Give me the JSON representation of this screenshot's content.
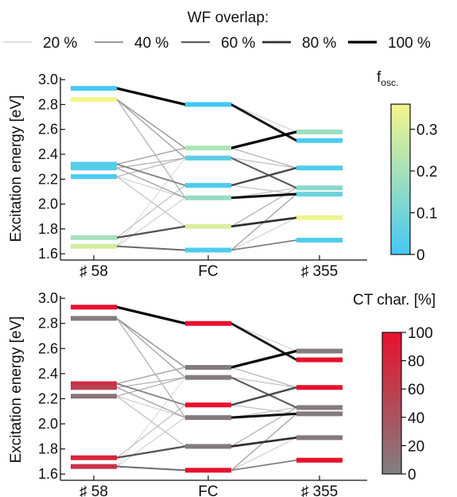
{
  "legend": {
    "title": "WF overlap:",
    "items": [
      {
        "label": "20 %",
        "weight": 0.2
      },
      {
        "label": "40 %",
        "weight": 0.4
      },
      {
        "label": "60 %",
        "weight": 0.6
      },
      {
        "label": "80 %",
        "weight": 0.8
      },
      {
        "label": "100 %",
        "weight": 1.0
      }
    ]
  },
  "chart_data": [
    {
      "type": "line",
      "ylabel": "Excitation energy [eV]",
      "ylim": [
        1.55,
        3.02
      ],
      "yticks": [
        "1.6",
        "1.8",
        "2.0",
        "2.2",
        "2.4",
        "2.6",
        "2.8",
        "3.0"
      ],
      "categories": [
        "♯ 58",
        "FC",
        "♯ 355"
      ],
      "colorbar": {
        "title": "f",
        "title_sub": "osc.",
        "range": [
          0,
          0.36
        ],
        "ticks": [
          "0",
          "0.1",
          "0.2",
          "0.3"
        ],
        "tick_values": [
          0,
          0.1,
          0.2,
          0.3
        ],
        "colors": [
          "#44c8f5",
          "#f5f58a"
        ]
      },
      "levels": [
        [
          {
            "energy": 2.93,
            "value": 0.0
          },
          {
            "energy": 2.84,
            "value": 0.36
          },
          {
            "energy": 2.32,
            "value": 0.03
          },
          {
            "energy": 2.29,
            "value": 0.04
          },
          {
            "energy": 2.22,
            "value": 0.02
          },
          {
            "energy": 1.73,
            "value": 0.2
          },
          {
            "energy": 1.66,
            "value": 0.29
          }
        ],
        [
          {
            "energy": 2.8,
            "value": 0.0
          },
          {
            "energy": 2.45,
            "value": 0.22
          },
          {
            "energy": 2.37,
            "value": 0.05
          },
          {
            "energy": 2.15,
            "value": 0.02
          },
          {
            "energy": 2.05,
            "value": 0.16
          },
          {
            "energy": 1.82,
            "value": 0.3
          },
          {
            "energy": 1.63,
            "value": 0.02
          }
        ],
        [
          {
            "energy": 2.58,
            "value": 0.18
          },
          {
            "energy": 2.51,
            "value": 0.02
          },
          {
            "energy": 2.29,
            "value": 0.02
          },
          {
            "energy": 2.13,
            "value": 0.14
          },
          {
            "energy": 2.08,
            "value": 0.08
          },
          {
            "energy": 1.89,
            "value": 0.35
          },
          {
            "energy": 1.71,
            "value": 0.03
          }
        ]
      ],
      "connections": [
        {
          "from": [
            0,
            2.93
          ],
          "to": [
            1,
            2.8
          ],
          "overlap": 1.0
        },
        {
          "from": [
            0,
            2.84
          ],
          "to": [
            1,
            2.45
          ],
          "overlap": 0.35
        },
        {
          "from": [
            0,
            2.84
          ],
          "to": [
            1,
            2.37
          ],
          "overlap": 0.3
        },
        {
          "from": [
            0,
            2.84
          ],
          "to": [
            1,
            2.05
          ],
          "overlap": 0.25
        },
        {
          "from": [
            0,
            2.32
          ],
          "to": [
            1,
            2.45
          ],
          "overlap": 0.3
        },
        {
          "from": [
            0,
            2.32
          ],
          "to": [
            1,
            2.15
          ],
          "overlap": 0.45
        },
        {
          "from": [
            0,
            2.29
          ],
          "to": [
            1,
            2.37
          ],
          "overlap": 0.25
        },
        {
          "from": [
            0,
            2.29
          ],
          "to": [
            1,
            2.05
          ],
          "overlap": 0.3
        },
        {
          "from": [
            0,
            2.22
          ],
          "to": [
            1,
            2.37
          ],
          "overlap": 0.25
        },
        {
          "from": [
            0,
            2.22
          ],
          "to": [
            1,
            1.82
          ],
          "overlap": 0.2
        },
        {
          "from": [
            0,
            2.22
          ],
          "to": [
            1,
            2.05
          ],
          "overlap": 0.15
        },
        {
          "from": [
            0,
            1.73
          ],
          "to": [
            1,
            1.82
          ],
          "overlap": 0.65
        },
        {
          "from": [
            0,
            1.73
          ],
          "to": [
            1,
            2.15
          ],
          "overlap": 0.2
        },
        {
          "from": [
            0,
            1.66
          ],
          "to": [
            1,
            1.63
          ],
          "overlap": 0.55
        },
        {
          "from": [
            0,
            1.66
          ],
          "to": [
            1,
            2.05
          ],
          "overlap": 0.15
        },
        {
          "from": [
            0,
            1.66
          ],
          "to": [
            1,
            2.37
          ],
          "overlap": 0.1
        },
        {
          "from": [
            1,
            2.8
          ],
          "to": [
            2,
            2.51
          ],
          "overlap": 0.9
        },
        {
          "from": [
            1,
            2.8
          ],
          "to": [
            2,
            2.58
          ],
          "overlap": 0.15
        },
        {
          "from": [
            1,
            2.45
          ],
          "to": [
            2,
            2.58
          ],
          "overlap": 1.0
        },
        {
          "from": [
            1,
            2.45
          ],
          "to": [
            2,
            2.29
          ],
          "overlap": 0.25
        },
        {
          "from": [
            1,
            2.37
          ],
          "to": [
            2,
            2.13
          ],
          "overlap": 0.6
        },
        {
          "from": [
            1,
            2.37
          ],
          "to": [
            2,
            2.29
          ],
          "overlap": 0.2
        },
        {
          "from": [
            1,
            2.15
          ],
          "to": [
            2,
            2.29
          ],
          "overlap": 0.7
        },
        {
          "from": [
            1,
            2.15
          ],
          "to": [
            2,
            2.08
          ],
          "overlap": 0.2
        },
        {
          "from": [
            1,
            2.05
          ],
          "to": [
            2,
            2.08
          ],
          "overlap": 0.95
        },
        {
          "from": [
            1,
            2.05
          ],
          "to": [
            2,
            2.13
          ],
          "overlap": 0.2
        },
        {
          "from": [
            1,
            1.82
          ],
          "to": [
            2,
            1.89
          ],
          "overlap": 0.8
        },
        {
          "from": [
            1,
            1.82
          ],
          "to": [
            2,
            2.13
          ],
          "overlap": 0.25
        },
        {
          "from": [
            1,
            1.63
          ],
          "to": [
            2,
            1.71
          ],
          "overlap": 0.45
        },
        {
          "from": [
            1,
            1.63
          ],
          "to": [
            2,
            2.08
          ],
          "overlap": 0.3
        },
        {
          "from": [
            1,
            1.63
          ],
          "to": [
            2,
            1.89
          ],
          "overlap": 0.15
        }
      ]
    },
    {
      "type": "line",
      "ylabel": "Excitation energy [eV]",
      "ylim": [
        1.55,
        3.02
      ],
      "yticks": [
        "1.6",
        "1.8",
        "2.0",
        "2.2",
        "2.4",
        "2.6",
        "2.8",
        "3.0"
      ],
      "categories": [
        "♯ 58",
        "FC",
        "♯ 355"
      ],
      "colorbar": {
        "title": "CT char. [%]",
        "title_sub": "",
        "range": [
          0,
          100
        ],
        "ticks": [
          "0",
          "20",
          "40",
          "60",
          "80",
          "100"
        ],
        "tick_values": [
          0,
          20,
          40,
          60,
          80,
          100
        ],
        "colors": [
          "#808080",
          "#e8112d"
        ]
      },
      "levels": [
        [
          {
            "energy": 2.93,
            "value": 100
          },
          {
            "energy": 2.84,
            "value": 5
          },
          {
            "energy": 2.32,
            "value": 75
          },
          {
            "energy": 2.29,
            "value": 55
          },
          {
            "energy": 2.22,
            "value": 10
          },
          {
            "energy": 1.73,
            "value": 85
          },
          {
            "energy": 1.66,
            "value": 70
          }
        ],
        [
          {
            "energy": 2.8,
            "value": 100
          },
          {
            "energy": 2.45,
            "value": 5
          },
          {
            "energy": 2.37,
            "value": 5
          },
          {
            "energy": 2.15,
            "value": 100
          },
          {
            "energy": 2.05,
            "value": 5
          },
          {
            "energy": 1.82,
            "value": 5
          },
          {
            "energy": 1.63,
            "value": 100
          }
        ],
        [
          {
            "energy": 2.58,
            "value": 5
          },
          {
            "energy": 2.51,
            "value": 100
          },
          {
            "energy": 2.29,
            "value": 100
          },
          {
            "energy": 2.13,
            "value": 5
          },
          {
            "energy": 2.08,
            "value": 5
          },
          {
            "energy": 1.89,
            "value": 5
          },
          {
            "energy": 1.71,
            "value": 100
          }
        ]
      ],
      "connections": [
        {
          "from": [
            0,
            2.93
          ],
          "to": [
            1,
            2.8
          ],
          "overlap": 1.0
        },
        {
          "from": [
            0,
            2.84
          ],
          "to": [
            1,
            2.45
          ],
          "overlap": 0.35
        },
        {
          "from": [
            0,
            2.84
          ],
          "to": [
            1,
            2.37
          ],
          "overlap": 0.3
        },
        {
          "from": [
            0,
            2.84
          ],
          "to": [
            1,
            2.05
          ],
          "overlap": 0.25
        },
        {
          "from": [
            0,
            2.32
          ],
          "to": [
            1,
            2.45
          ],
          "overlap": 0.3
        },
        {
          "from": [
            0,
            2.32
          ],
          "to": [
            1,
            2.15
          ],
          "overlap": 0.45
        },
        {
          "from": [
            0,
            2.29
          ],
          "to": [
            1,
            2.37
          ],
          "overlap": 0.25
        },
        {
          "from": [
            0,
            2.29
          ],
          "to": [
            1,
            2.05
          ],
          "overlap": 0.3
        },
        {
          "from": [
            0,
            2.22
          ],
          "to": [
            1,
            2.37
          ],
          "overlap": 0.25
        },
        {
          "from": [
            0,
            2.22
          ],
          "to": [
            1,
            1.82
          ],
          "overlap": 0.2
        },
        {
          "from": [
            0,
            2.22
          ],
          "to": [
            1,
            2.05
          ],
          "overlap": 0.15
        },
        {
          "from": [
            0,
            1.73
          ],
          "to": [
            1,
            1.82
          ],
          "overlap": 0.65
        },
        {
          "from": [
            0,
            1.73
          ],
          "to": [
            1,
            2.15
          ],
          "overlap": 0.2
        },
        {
          "from": [
            0,
            1.66
          ],
          "to": [
            1,
            1.63
          ],
          "overlap": 0.55
        },
        {
          "from": [
            0,
            1.66
          ],
          "to": [
            1,
            2.05
          ],
          "overlap": 0.15
        },
        {
          "from": [
            0,
            1.66
          ],
          "to": [
            1,
            2.37
          ],
          "overlap": 0.1
        },
        {
          "from": [
            1,
            2.8
          ],
          "to": [
            2,
            2.51
          ],
          "overlap": 0.9
        },
        {
          "from": [
            1,
            2.8
          ],
          "to": [
            2,
            2.58
          ],
          "overlap": 0.15
        },
        {
          "from": [
            1,
            2.45
          ],
          "to": [
            2,
            2.58
          ],
          "overlap": 1.0
        },
        {
          "from": [
            1,
            2.45
          ],
          "to": [
            2,
            2.29
          ],
          "overlap": 0.25
        },
        {
          "from": [
            1,
            2.37
          ],
          "to": [
            2,
            2.13
          ],
          "overlap": 0.6
        },
        {
          "from": [
            1,
            2.37
          ],
          "to": [
            2,
            2.29
          ],
          "overlap": 0.2
        },
        {
          "from": [
            1,
            2.15
          ],
          "to": [
            2,
            2.29
          ],
          "overlap": 0.7
        },
        {
          "from": [
            1,
            2.15
          ],
          "to": [
            2,
            2.08
          ],
          "overlap": 0.2
        },
        {
          "from": [
            1,
            2.05
          ],
          "to": [
            2,
            2.08
          ],
          "overlap": 0.95
        },
        {
          "from": [
            1,
            2.05
          ],
          "to": [
            2,
            2.13
          ],
          "overlap": 0.2
        },
        {
          "from": [
            1,
            1.82
          ],
          "to": [
            2,
            1.89
          ],
          "overlap": 0.8
        },
        {
          "from": [
            1,
            1.82
          ],
          "to": [
            2,
            2.13
          ],
          "overlap": 0.25
        },
        {
          "from": [
            1,
            1.63
          ],
          "to": [
            2,
            1.71
          ],
          "overlap": 0.45
        },
        {
          "from": [
            1,
            1.63
          ],
          "to": [
            2,
            2.08
          ],
          "overlap": 0.3
        },
        {
          "from": [
            1,
            1.63
          ],
          "to": [
            2,
            1.89
          ],
          "overlap": 0.15
        }
      ]
    }
  ]
}
